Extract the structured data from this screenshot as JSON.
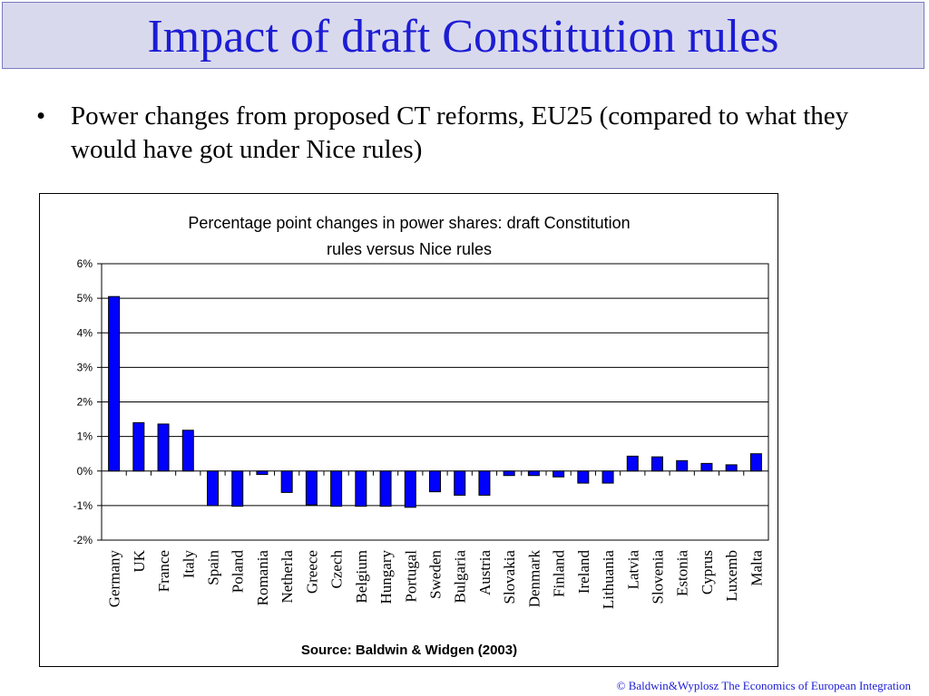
{
  "slide": {
    "title": "Impact of draft Constitution rules",
    "bullet_mark": "•",
    "bullet": "Power changes from proposed CT reforms, EU25 (compared to what they would have got under Nice rules)",
    "footer": "© Baldwin&Wyplosz The Economics of European Integration"
  },
  "chart_data": {
    "type": "bar",
    "title_lines": [
      "Percentage point changes in power shares: draft Constitution",
      "rules versus Nice rules"
    ],
    "source": "Source: Baldwin & Widgen (2003)",
    "categories": [
      "Germany",
      "UK",
      "France",
      "Italy",
      "Spain",
      "Poland",
      "Romania",
      "Netherla",
      "Greece",
      "Czech",
      "Belgium",
      "Hungary",
      "Portugal",
      "Sweden",
      "Bulgaria",
      "Austria",
      "Slovakia",
      "Denmark",
      "Finland",
      "Ireland",
      "Lithuania",
      "Latvia",
      "Slovenia",
      "Estonia",
      "Cyprus",
      "Luxemb",
      "Malta"
    ],
    "values": [
      5.05,
      1.4,
      1.36,
      1.18,
      -1.0,
      -1.02,
      -0.1,
      -0.62,
      -0.98,
      -1.02,
      -1.02,
      -1.02,
      -1.05,
      -0.6,
      -0.7,
      -0.7,
      -0.13,
      -0.13,
      -0.17,
      -0.35,
      -0.35,
      0.43,
      0.41,
      0.3,
      0.22,
      0.18,
      0.5
    ],
    "ylim": [
      -2,
      6
    ],
    "yticks": [
      -2,
      -1,
      0,
      1,
      2,
      3,
      4,
      5,
      6
    ],
    "ytick_labels": [
      "-2%",
      "-1%",
      "0%",
      "1%",
      "2%",
      "3%",
      "4%",
      "5%",
      "6%"
    ],
    "bar_color": "#0000ff",
    "grid": "horizontal"
  }
}
